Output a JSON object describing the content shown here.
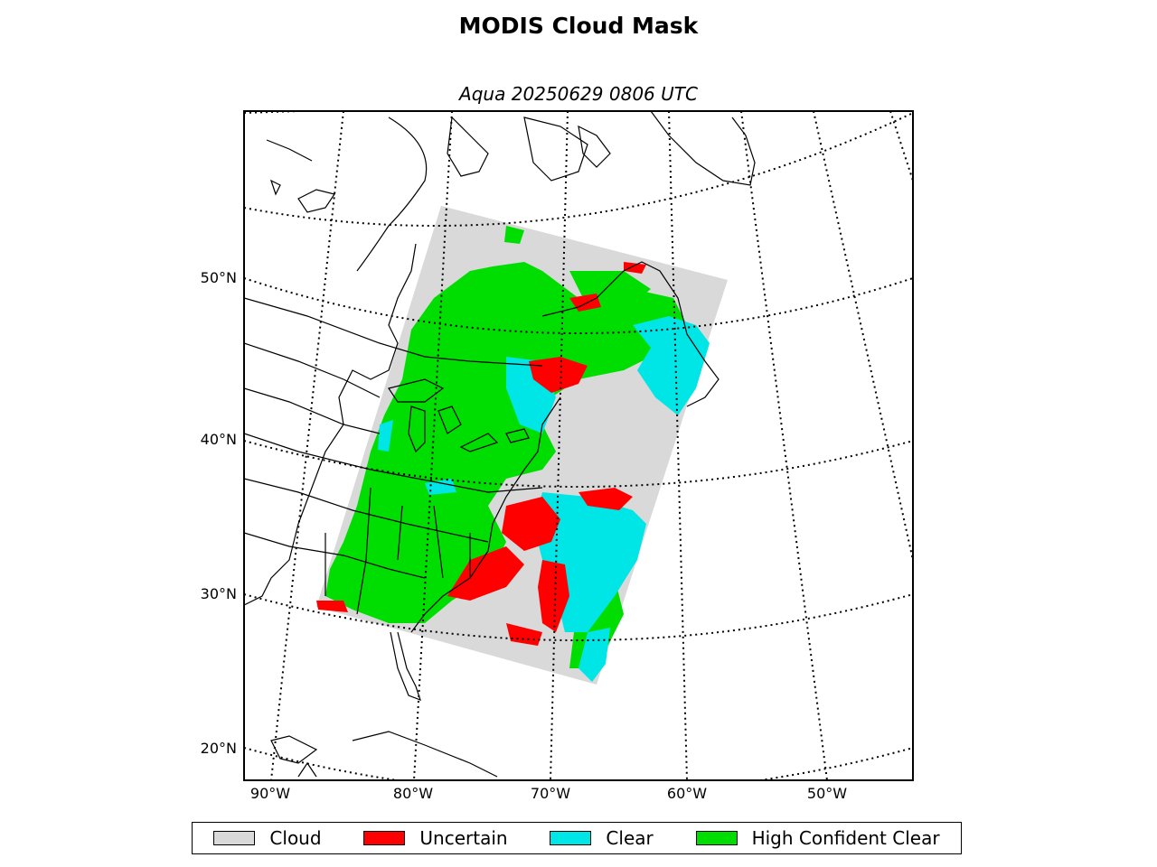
{
  "figure": {
    "title": "MODIS Cloud Mask",
    "subtitle": "Aqua 20250629 0806 UTC"
  },
  "map": {
    "projection": "conic",
    "lat_labels": [
      "50°N",
      "40°N",
      "30°N",
      "20°N"
    ],
    "lon_labels": [
      "90°W",
      "80°W",
      "70°W",
      "60°W",
      "50°W"
    ],
    "graticule_style": "dotted"
  },
  "legend": {
    "placement": "bottom",
    "items": [
      {
        "label": "Cloud",
        "color": "#d9d9d9"
      },
      {
        "label": "Uncertain",
        "color": "#ff0000"
      },
      {
        "label": "Clear",
        "color": "#00e5e5"
      },
      {
        "label": "High Confident Clear",
        "color": "#00dd00"
      }
    ]
  }
}
